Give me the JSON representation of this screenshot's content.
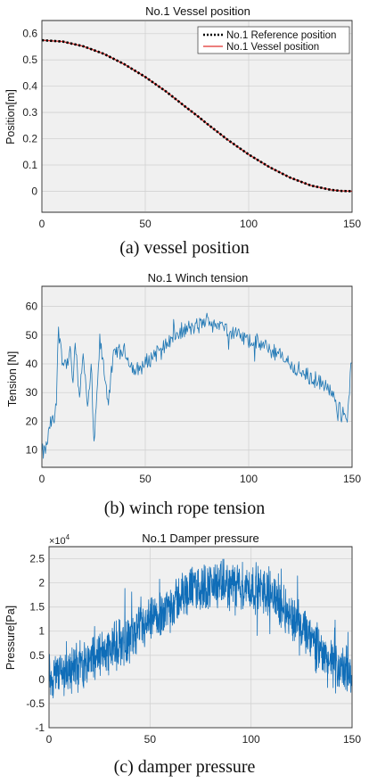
{
  "chart_data": [
    {
      "type": "line",
      "title": "No.1 Vessel position",
      "ylabel": "Position[m]",
      "xlabel": "",
      "caption": "(a)  vessel position",
      "xlim": [
        0,
        150
      ],
      "ylim": [
        -0.08,
        0.65
      ],
      "xticks": [
        "0",
        "50",
        "100",
        "150"
      ],
      "yticks": [
        "0",
        "0.1",
        "0.2",
        "0.3",
        "0.4",
        "0.5",
        "0.6"
      ],
      "grid": true,
      "legend_position": "top-right",
      "series": [
        {
          "name": "No.1 Reference position",
          "style": "dotted",
          "color": "#000000",
          "x": [
            0,
            10,
            20,
            30,
            40,
            50,
            60,
            70,
            75,
            80,
            90,
            100,
            110,
            120,
            130,
            140,
            145,
            150
          ],
          "values": [
            0.575,
            0.57,
            0.552,
            0.523,
            0.483,
            0.435,
            0.38,
            0.318,
            0.288,
            0.256,
            0.195,
            0.14,
            0.092,
            0.052,
            0.022,
            0.005,
            0.001,
            0.0
          ]
        },
        {
          "name": "No.1 Vessel position",
          "style": "solid",
          "color": "#e0302e",
          "x": [
            0,
            10,
            20,
            30,
            40,
            50,
            60,
            70,
            75,
            80,
            90,
            100,
            110,
            120,
            130,
            140,
            145,
            150
          ],
          "values": [
            0.575,
            0.57,
            0.552,
            0.523,
            0.483,
            0.435,
            0.38,
            0.318,
            0.288,
            0.256,
            0.195,
            0.14,
            0.092,
            0.052,
            0.022,
            0.005,
            0.001,
            0.0
          ]
        }
      ]
    },
    {
      "type": "line",
      "title": "No.1 Winch tension",
      "ylabel": "Tension [N]",
      "xlabel": "",
      "caption": "(b)  winch  rope  tension",
      "xlim": [
        0,
        150
      ],
      "ylim": [
        4,
        67
      ],
      "xticks": [
        "0",
        "50",
        "100",
        "150"
      ],
      "yticks": [
        "10",
        "20",
        "30",
        "40",
        "50",
        "60"
      ],
      "grid": true,
      "series": [
        {
          "name": "",
          "color": "#1f77b4",
          "x": [
            0,
            2,
            4,
            5,
            6,
            7,
            8,
            9,
            10,
            12,
            14,
            15,
            16,
            18,
            20,
            22,
            24,
            25,
            26,
            27,
            28,
            30,
            32,
            35,
            40,
            45,
            50,
            55,
            60,
            65,
            70,
            75,
            80,
            85,
            90,
            95,
            100,
            105,
            110,
            115,
            120,
            125,
            130,
            135,
            140,
            142,
            145,
            148,
            150
          ],
          "values": [
            9,
            10,
            19,
            20,
            20,
            30,
            51,
            48,
            41,
            40,
            44,
            30,
            49,
            27,
            45,
            24,
            39,
            12,
            20,
            34,
            48,
            38,
            27,
            44,
            44,
            37,
            40,
            44,
            47,
            50,
            52,
            53,
            55,
            54,
            52,
            50,
            48,
            47,
            45,
            43,
            40,
            37,
            35,
            33,
            30,
            26,
            23,
            22,
            45
          ]
        }
      ]
    },
    {
      "type": "line",
      "title": "No.1 Damper pressure",
      "ylabel": "Pressure[Pa]",
      "xlabel": "",
      "caption": "(c)  damper  pressure",
      "y_multiplier": "×10",
      "y_multiplier_exp": "4",
      "xlim": [
        0,
        150
      ],
      "ylim": [
        -1.0,
        2.75
      ],
      "xticks": [
        "0",
        "50",
        "100",
        "150"
      ],
      "yticks": [
        "-1",
        "-0.5",
        "0",
        "0.5",
        "1",
        "1.5",
        "2",
        "2.5"
      ],
      "grid": true,
      "series": [
        {
          "name": "",
          "color": "#0f6db8",
          "x": [
            0,
            10,
            20,
            30,
            40,
            50,
            60,
            70,
            80,
            90,
            100,
            110,
            120,
            130,
            140,
            150
          ],
          "values": [
            0.05,
            0.2,
            0.4,
            0.65,
            0.85,
            1.15,
            1.55,
            1.85,
            1.95,
            1.95,
            1.9,
            1.8,
            1.3,
            0.8,
            0.3,
            0.1
          ]
        }
      ]
    }
  ]
}
